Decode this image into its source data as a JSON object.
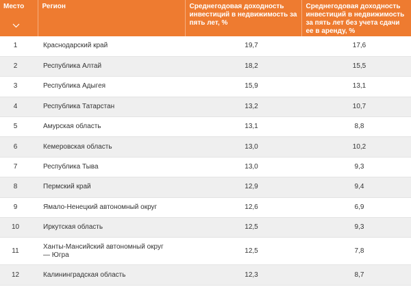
{
  "table": {
    "headers": {
      "place": "Место",
      "region": "Регион",
      "yield_total": "Среднегодовая доходность инвестиций в недвижимость за пять лет, %",
      "yield_no_rent": "Среднегодовая доходность инвестиций в недвижимость за пять лет без учета сдачи ее в аренду, %"
    },
    "sort_icon": "chevron-down-icon",
    "header_color": "#ee7b30",
    "rows": [
      {
        "place": "1",
        "region": "Краснодарский край",
        "yield_total": "19,7",
        "yield_no_rent": "17,6"
      },
      {
        "place": "2",
        "region": "Республика Алтай",
        "yield_total": "18,2",
        "yield_no_rent": "15,5"
      },
      {
        "place": "3",
        "region": "Республика Адыгея",
        "yield_total": "15,9",
        "yield_no_rent": "13,1"
      },
      {
        "place": "4",
        "region": "Республика Татарстан",
        "yield_total": "13,2",
        "yield_no_rent": "10,7"
      },
      {
        "place": "5",
        "region": "Амурская область",
        "yield_total": "13,1",
        "yield_no_rent": "8,8"
      },
      {
        "place": "6",
        "region": "Кемеровская область",
        "yield_total": "13,0",
        "yield_no_rent": "10,2"
      },
      {
        "place": "7",
        "region": "Республика Тыва",
        "yield_total": "13,0",
        "yield_no_rent": "9,3"
      },
      {
        "place": "8",
        "region": "Пермский край",
        "yield_total": "12,9",
        "yield_no_rent": "9,4"
      },
      {
        "place": "9",
        "region": "Ямало-Ненецкий автономный округ",
        "yield_total": "12,6",
        "yield_no_rent": "6,9"
      },
      {
        "place": "10",
        "region": "Иркутская область",
        "yield_total": "12,5",
        "yield_no_rent": "9,3"
      },
      {
        "place": "11",
        "region": "Ханты-Мансийский автономный округ — Югра",
        "yield_total": "12,5",
        "yield_no_rent": "7,8"
      },
      {
        "place": "12",
        "region": "Калининградская область",
        "yield_total": "12,3",
        "yield_no_rent": "8,7"
      }
    ]
  }
}
